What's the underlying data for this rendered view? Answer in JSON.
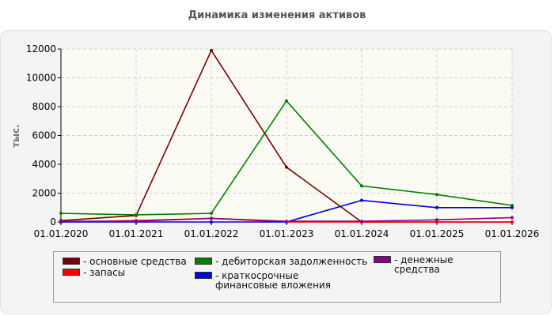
{
  "chart_data": {
    "type": "line",
    "title": "Динамика изменения активов",
    "ylabel": "тыс.",
    "xlabel": "",
    "x": [
      "01.01.2020",
      "01.01.2021",
      "01.01.2022",
      "01.01.2023",
      "01.01.2024",
      "01.01.2025",
      "01.01.2026"
    ],
    "ylim": [
      0,
      12000
    ],
    "yticks": [
      "0",
      "2000",
      "4000",
      "6000",
      "8000",
      "10000",
      "12000"
    ],
    "grid": true,
    "legend_position": "bottom",
    "series": [
      {
        "name": "- основные средства",
        "color": "#7a0000",
        "values": [
          100,
          450,
          11900,
          3800,
          0,
          0,
          0
        ]
      },
      {
        "name": "- запасы",
        "color": "#ff0000",
        "values": [
          0,
          100,
          250,
          0,
          0,
          0,
          0
        ]
      },
      {
        "name": "- дебиторская задолженность",
        "color": "#008000",
        "values": [
          600,
          500,
          600,
          8400,
          2500,
          1900,
          1150
        ]
      },
      {
        "name": "- краткосрочные финансовые вложения",
        "color": "#0000e0",
        "values": [
          0,
          0,
          0,
          0,
          1500,
          1000,
          1000
        ]
      },
      {
        "name": "- денежные средства",
        "color": "#8b008b",
        "values": [
          50,
          50,
          250,
          50,
          50,
          150,
          300
        ]
      }
    ]
  }
}
